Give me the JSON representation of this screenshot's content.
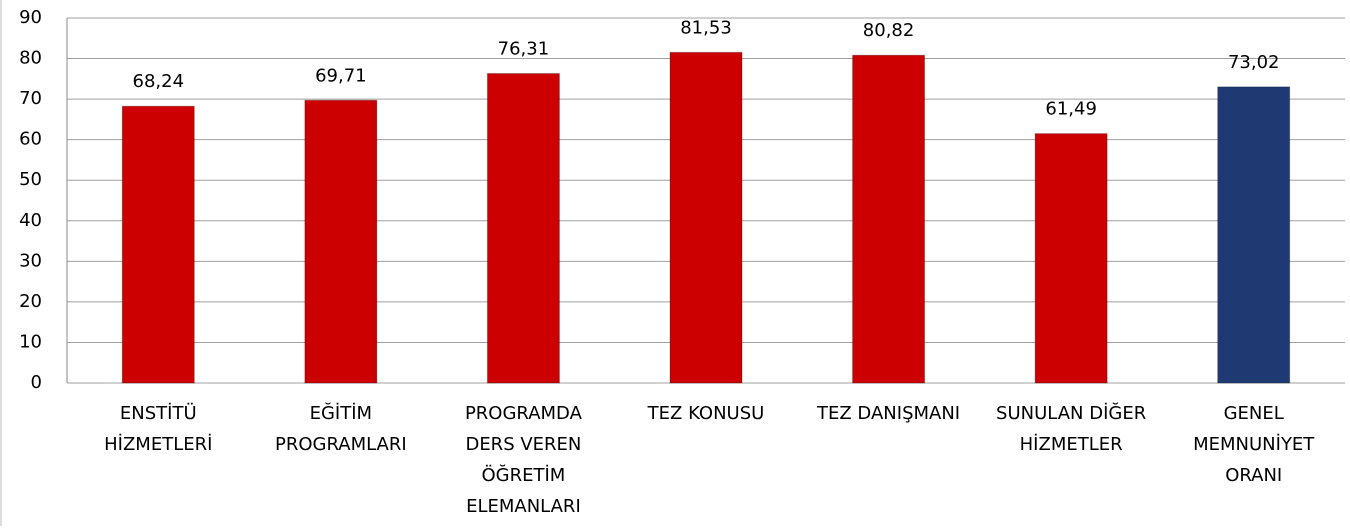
{
  "chart_data": {
    "type": "bar",
    "categories": [
      [
        "ENSTİTÜ",
        "HİZMETLERİ"
      ],
      [
        "EĞİTİM",
        "PROGRAMLARI"
      ],
      [
        "PROGRAMDA",
        "DERS VEREN",
        "ÖĞRETİM",
        "ELEMANLARI"
      ],
      [
        "TEZ KONUSU"
      ],
      [
        "TEZ DANIŞMANI"
      ],
      [
        "SUNULAN DİĞER",
        "HİZMETLER"
      ],
      [
        "GENEL",
        "MEMNUNİYET",
        "ORANI"
      ]
    ],
    "values": [
      68.24,
      69.71,
      76.31,
      81.53,
      80.82,
      61.49,
      73.02
    ],
    "value_labels": [
      "68,24",
      "69,71",
      "76,31",
      "81,53",
      "80,82",
      "61,49",
      "73,02"
    ],
    "colors": [
      "#cc0000",
      "#cc0000",
      "#cc0000",
      "#cc0000",
      "#cc0000",
      "#cc0000",
      "#1f3a73"
    ],
    "ylim": [
      0,
      90
    ],
    "yticks": [
      0,
      10,
      20,
      30,
      40,
      50,
      60,
      70,
      80,
      90
    ],
    "grid": true
  }
}
